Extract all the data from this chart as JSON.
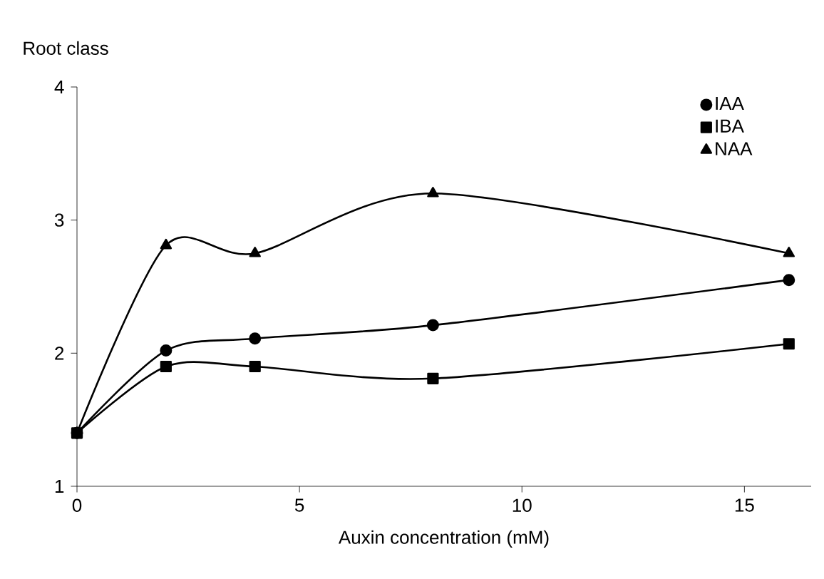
{
  "chart_data": {
    "type": "line",
    "xlabel": "Auxin concentration (mM)",
    "ylabel": "Root class",
    "x": [
      0,
      2,
      4,
      8,
      16
    ],
    "series": [
      {
        "name": "IAA",
        "color": "#000000",
        "marker": "circle",
        "values": [
          1.4,
          2.02,
          2.11,
          2.21,
          2.55
        ]
      },
      {
        "name": "IBA",
        "color": "#000000",
        "marker": "square",
        "values": [
          1.4,
          1.9,
          1.9,
          1.81,
          2.07
        ]
      },
      {
        "name": "NAA",
        "color": "#000000",
        "marker": "triangle",
        "values": [
          1.4,
          2.81,
          2.75,
          3.2,
          2.75
        ]
      }
    ],
    "xlim": [
      0,
      16.5
    ],
    "ylim": [
      1,
      4
    ],
    "xticks": [
      0,
      5,
      10,
      15
    ],
    "yticks": [
      1,
      2,
      3,
      4
    ],
    "grid": false,
    "legend": "top right",
    "line_style": "solid"
  }
}
